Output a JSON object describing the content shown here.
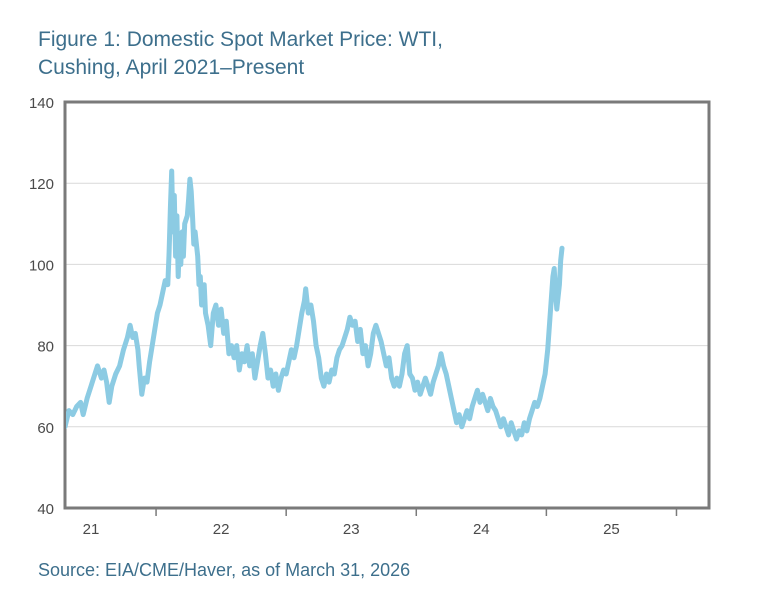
{
  "title_lines": [
    "Figure 1: Domestic Spot Market Price: WTI,",
    "Cushing, April 2021–Present"
  ],
  "source": "Source: EIA/CME/Haver, as of March 31, 2026",
  "chart_data": {
    "type": "line",
    "title": "Figure 1: Domestic Spot Market Price: WTI, Cushing, April 2021–Present",
    "xlabel": "",
    "ylabel": "",
    "ylim": [
      40,
      140
    ],
    "xlim": [
      2021.3,
      2026.25
    ],
    "yticks": [
      40,
      60,
      80,
      100,
      120,
      140
    ],
    "xtick_labels": [
      {
        "label": "21",
        "x": 2021.5
      },
      {
        "label": "22",
        "x": 2022.5
      },
      {
        "label": "23",
        "x": 2023.5
      },
      {
        "label": "24",
        "x": 2024.5
      },
      {
        "label": "25",
        "x": 2025.5
      }
    ],
    "xtick_marks": [
      2022.0,
      2023.0,
      2024.0,
      2025.0,
      2026.0
    ],
    "grid": true,
    "line_color": "#8ccbe3",
    "series": [
      {
        "name": "",
        "points": [
          [
            2021.3,
            60
          ],
          [
            2021.33,
            64
          ],
          [
            2021.36,
            63
          ],
          [
            2021.39,
            65
          ],
          [
            2021.42,
            66
          ],
          [
            2021.44,
            63
          ],
          [
            2021.47,
            67
          ],
          [
            2021.5,
            70
          ],
          [
            2021.53,
            73
          ],
          [
            2021.55,
            75
          ],
          [
            2021.58,
            72
          ],
          [
            2021.6,
            74
          ],
          [
            2021.62,
            71
          ],
          [
            2021.64,
            66
          ],
          [
            2021.66,
            70
          ],
          [
            2021.69,
            73
          ],
          [
            2021.72,
            75
          ],
          [
            2021.75,
            79
          ],
          [
            2021.78,
            82
          ],
          [
            2021.8,
            85
          ],
          [
            2021.82,
            82
          ],
          [
            2021.84,
            83
          ],
          [
            2021.86,
            79
          ],
          [
            2021.87,
            75
          ],
          [
            2021.89,
            68
          ],
          [
            2021.91,
            72
          ],
          [
            2021.93,
            71
          ],
          [
            2021.95,
            76
          ],
          [
            2021.97,
            80
          ],
          [
            2021.99,
            84
          ],
          [
            2022.01,
            88
          ],
          [
            2022.03,
            90
          ],
          [
            2022.05,
            93
          ],
          [
            2022.07,
            96
          ],
          [
            2022.09,
            95
          ],
          [
            2022.1,
            103
          ],
          [
            2022.11,
            114
          ],
          [
            2022.12,
            123
          ],
          [
            2022.13,
            108
          ],
          [
            2022.14,
            117
          ],
          [
            2022.15,
            102
          ],
          [
            2022.16,
            112
          ],
          [
            2022.17,
            97
          ],
          [
            2022.18,
            106
          ],
          [
            2022.19,
            100
          ],
          [
            2022.2,
            108
          ],
          [
            2022.21,
            102
          ],
          [
            2022.22,
            110
          ],
          [
            2022.24,
            112
          ],
          [
            2022.25,
            116
          ],
          [
            2022.26,
            121
          ],
          [
            2022.27,
            118
          ],
          [
            2022.28,
            112
          ],
          [
            2022.29,
            105
          ],
          [
            2022.3,
            108
          ],
          [
            2022.32,
            102
          ],
          [
            2022.33,
            95
          ],
          [
            2022.34,
            97
          ],
          [
            2022.35,
            90
          ],
          [
            2022.37,
            95
          ],
          [
            2022.38,
            88
          ],
          [
            2022.4,
            85
          ],
          [
            2022.42,
            80
          ],
          [
            2022.44,
            88
          ],
          [
            2022.46,
            90
          ],
          [
            2022.48,
            85
          ],
          [
            2022.5,
            89
          ],
          [
            2022.52,
            83
          ],
          [
            2022.54,
            86
          ],
          [
            2022.56,
            78
          ],
          [
            2022.58,
            80
          ],
          [
            2022.6,
            77
          ],
          [
            2022.62,
            80
          ],
          [
            2022.64,
            74
          ],
          [
            2022.66,
            78
          ],
          [
            2022.68,
            76
          ],
          [
            2022.7,
            80
          ],
          [
            2022.72,
            75
          ],
          [
            2022.74,
            78
          ],
          [
            2022.76,
            72
          ],
          [
            2022.78,
            76
          ],
          [
            2022.8,
            80
          ],
          [
            2022.82,
            83
          ],
          [
            2022.84,
            78
          ],
          [
            2022.86,
            72
          ],
          [
            2022.88,
            74
          ],
          [
            2022.9,
            70
          ],
          [
            2022.92,
            73
          ],
          [
            2022.94,
            69
          ],
          [
            2022.96,
            72
          ],
          [
            2022.98,
            74
          ],
          [
            2023.0,
            73
          ],
          [
            2023.02,
            76
          ],
          [
            2023.04,
            79
          ],
          [
            2023.06,
            77
          ],
          [
            2023.08,
            80
          ],
          [
            2023.1,
            84
          ],
          [
            2023.12,
            88
          ],
          [
            2023.14,
            91
          ],
          [
            2023.15,
            94
          ],
          [
            2023.17,
            88
          ],
          [
            2023.19,
            90
          ],
          [
            2023.21,
            86
          ],
          [
            2023.23,
            80
          ],
          [
            2023.25,
            77
          ],
          [
            2023.27,
            72
          ],
          [
            2023.29,
            70
          ],
          [
            2023.31,
            73
          ],
          [
            2023.33,
            71
          ],
          [
            2023.35,
            74
          ],
          [
            2023.37,
            73
          ],
          [
            2023.39,
            77
          ],
          [
            2023.41,
            79
          ],
          [
            2023.43,
            80
          ],
          [
            2023.45,
            82
          ],
          [
            2023.47,
            84
          ],
          [
            2023.49,
            87
          ],
          [
            2023.51,
            85
          ],
          [
            2023.53,
            86
          ],
          [
            2023.55,
            81
          ],
          [
            2023.57,
            84
          ],
          [
            2023.59,
            78
          ],
          [
            2023.61,
            80
          ],
          [
            2023.63,
            75
          ],
          [
            2023.65,
            78
          ],
          [
            2023.67,
            83
          ],
          [
            2023.69,
            85
          ],
          [
            2023.71,
            83
          ],
          [
            2023.73,
            81
          ],
          [
            2023.75,
            78
          ],
          [
            2023.77,
            75
          ],
          [
            2023.79,
            77
          ],
          [
            2023.81,
            72
          ],
          [
            2023.83,
            70
          ],
          [
            2023.85,
            72
          ],
          [
            2023.87,
            70
          ],
          [
            2023.89,
            73
          ],
          [
            2023.91,
            78
          ],
          [
            2023.93,
            80
          ],
          [
            2023.95,
            73
          ],
          [
            2023.97,
            72
          ],
          [
            2023.99,
            69
          ],
          [
            2024.01,
            71
          ],
          [
            2024.03,
            68
          ],
          [
            2024.05,
            70
          ],
          [
            2024.07,
            72
          ],
          [
            2024.09,
            70
          ],
          [
            2024.11,
            68
          ],
          [
            2024.13,
            71
          ],
          [
            2024.15,
            73
          ],
          [
            2024.17,
            75
          ],
          [
            2024.19,
            78
          ],
          [
            2024.21,
            75
          ],
          [
            2024.23,
            73
          ],
          [
            2024.25,
            70
          ],
          [
            2024.27,
            67
          ],
          [
            2024.29,
            64
          ],
          [
            2024.31,
            61
          ],
          [
            2024.33,
            63
          ],
          [
            2024.35,
            60
          ],
          [
            2024.37,
            62
          ],
          [
            2024.39,
            64
          ],
          [
            2024.41,
            62
          ],
          [
            2024.43,
            65
          ],
          [
            2024.45,
            67
          ],
          [
            2024.47,
            69
          ],
          [
            2024.49,
            66
          ],
          [
            2024.51,
            68
          ],
          [
            2024.53,
            66
          ],
          [
            2024.55,
            64
          ],
          [
            2024.57,
            67
          ],
          [
            2024.59,
            65
          ],
          [
            2024.61,
            64
          ],
          [
            2024.63,
            62
          ],
          [
            2024.65,
            60
          ],
          [
            2024.67,
            62
          ],
          [
            2024.69,
            60
          ],
          [
            2024.71,
            58
          ],
          [
            2024.73,
            61
          ],
          [
            2024.75,
            59
          ],
          [
            2024.77,
            57
          ],
          [
            2024.79,
            59
          ],
          [
            2024.81,
            58
          ],
          [
            2024.83,
            61
          ],
          [
            2024.85,
            59
          ],
          [
            2024.87,
            62
          ],
          [
            2024.89,
            64
          ],
          [
            2024.91,
            66
          ],
          [
            2024.93,
            65
          ],
          [
            2024.95,
            67
          ],
          [
            2024.97,
            70
          ],
          [
            2024.99,
            73
          ],
          [
            2025.01,
            79
          ],
          [
            2025.03,
            88
          ],
          [
            2025.05,
            97
          ],
          [
            2025.06,
            99
          ],
          [
            2025.07,
            93
          ],
          [
            2025.08,
            89
          ],
          [
            2025.09,
            92
          ],
          [
            2025.1,
            95
          ],
          [
            2025.11,
            101
          ],
          [
            2025.12,
            104
          ]
        ]
      }
    ]
  }
}
